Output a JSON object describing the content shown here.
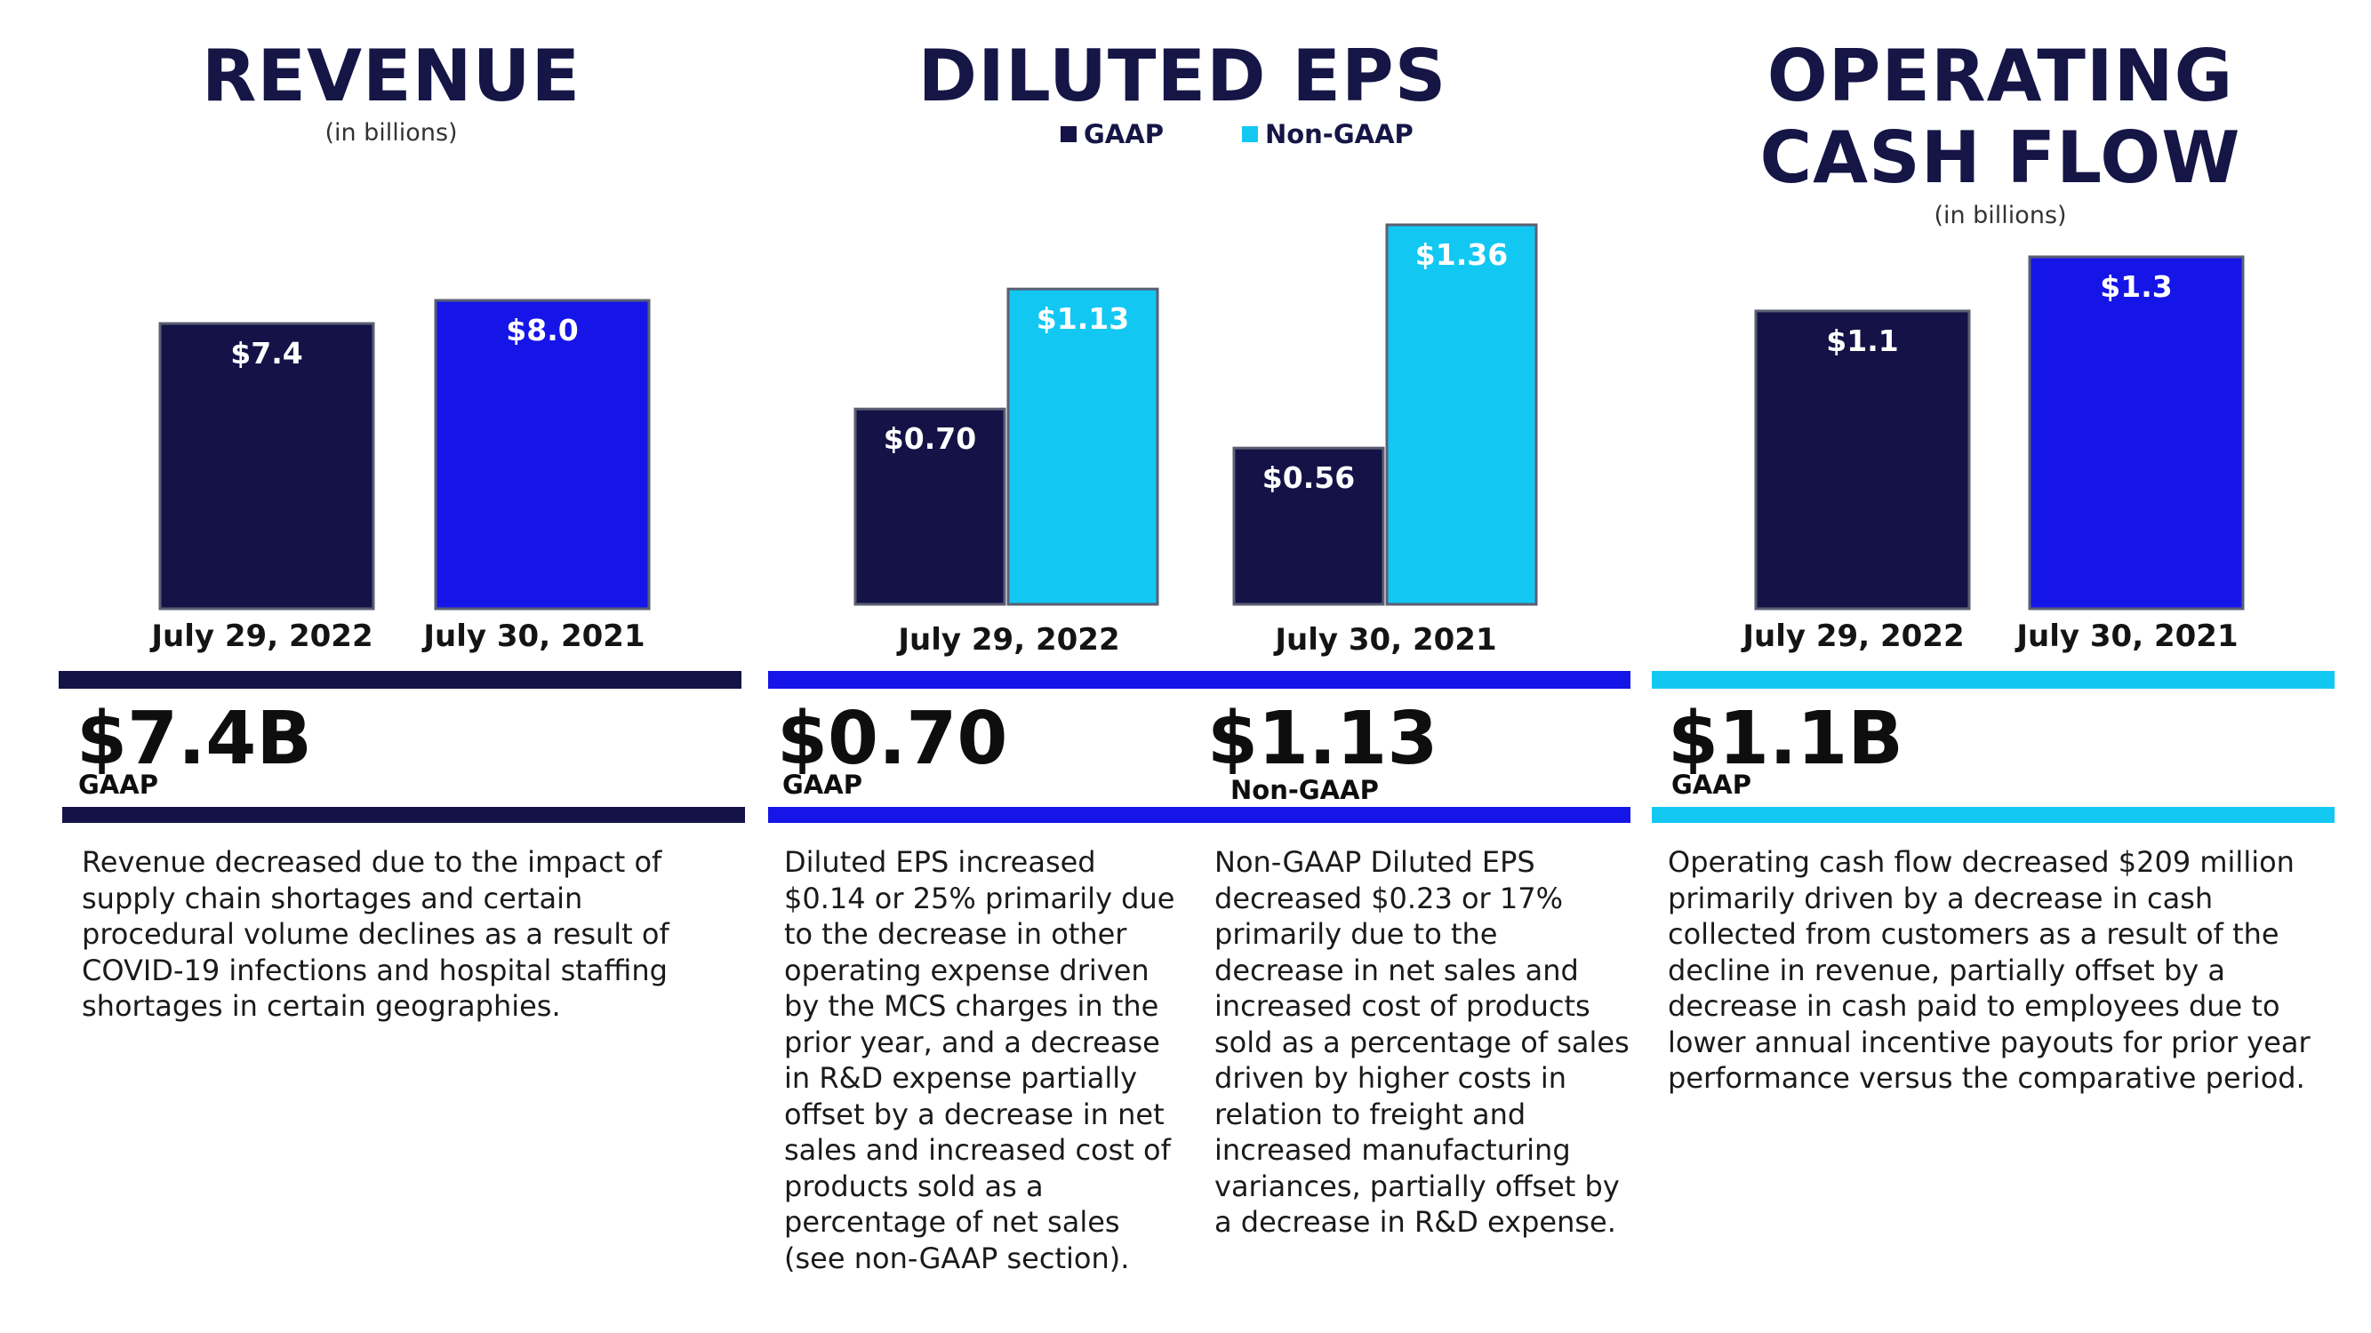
{
  "colors": {
    "navy": "#141246",
    "blue": "#1515E8",
    "cyan": "#12C8F3"
  },
  "revenue": {
    "title": "REVENUE",
    "subtitle": "(in billions)",
    "headline": "$7.4B",
    "headline_tag": "GAAP",
    "description": "Revenue decreased due to the impact of supply chain shortages and certain procedural volume declines as a result of COVID-19 infections and hospital staffing shortages in certain geographies."
  },
  "eps": {
    "title": "DILUTED EPS",
    "legend": {
      "gaap": "GAAP",
      "nongaap": "Non-GAAP"
    },
    "headline_gaap": "$0.70",
    "headline_gaap_tag": "GAAP",
    "headline_nongaap": "$1.13",
    "headline_nongaap_tag": "Non-GAAP",
    "description_gaap": "Diluted EPS increased $0.14 or 25% primarily due to the decrease in other operating expense driven by the MCS charges in the prior year, and a decrease in R&D expense partially offset by a decrease in net sales and increased cost of products sold as a percentage of net sales (see non-GAAP section).",
    "description_nongaap": "Non-GAAP Diluted EPS decreased $0.23 or 17% primarily due to the decrease in net sales and increased cost of products sold as a percentage of sales driven by higher costs in relation to freight and increased manufacturing variances, partially offset by a decrease in R&D expense."
  },
  "ocf": {
    "title_line1": "OPERATING",
    "title_line2": "CASH FLOW",
    "subtitle": "(in billions)",
    "headline": "$1.1B",
    "headline_tag": "GAAP",
    "description": "Operating cash flow decreased $209 million primarily driven by a decrease in cash collected from customers as a result of the decline in revenue, partially offset by a decrease in cash paid to employees due to lower annual incentive payouts for prior year performance versus the comparative period."
  },
  "chart_data": [
    {
      "type": "bar",
      "title": "REVENUE",
      "subtitle": "(in billions)",
      "categories": [
        "July 29, 2022",
        "July 30, 2021"
      ],
      "values": [
        7.4,
        8.0
      ],
      "value_labels": [
        "$7.4",
        "$8.0"
      ],
      "ylim": [
        0,
        8.8
      ]
    },
    {
      "type": "bar",
      "title": "DILUTED EPS",
      "categories": [
        "July 29, 2022",
        "July 30, 2021"
      ],
      "series": [
        {
          "name": "GAAP",
          "values": [
            0.7,
            0.56
          ],
          "value_labels": [
            "$0.70",
            "$0.56"
          ]
        },
        {
          "name": "Non-GAAP",
          "values": [
            1.13,
            1.36
          ],
          "value_labels": [
            "$1.13",
            "$1.36"
          ]
        }
      ],
      "legend": "top",
      "ylim": [
        0,
        1.36
      ]
    },
    {
      "type": "bar",
      "title": "OPERATING CASH FLOW",
      "subtitle": "(in billions)",
      "categories": [
        "July 29, 2022",
        "July 30, 2021"
      ],
      "values": [
        1.1,
        1.3
      ],
      "value_labels": [
        "$1.1",
        "$1.3"
      ],
      "ylim": [
        0,
        1.3
      ]
    }
  ]
}
